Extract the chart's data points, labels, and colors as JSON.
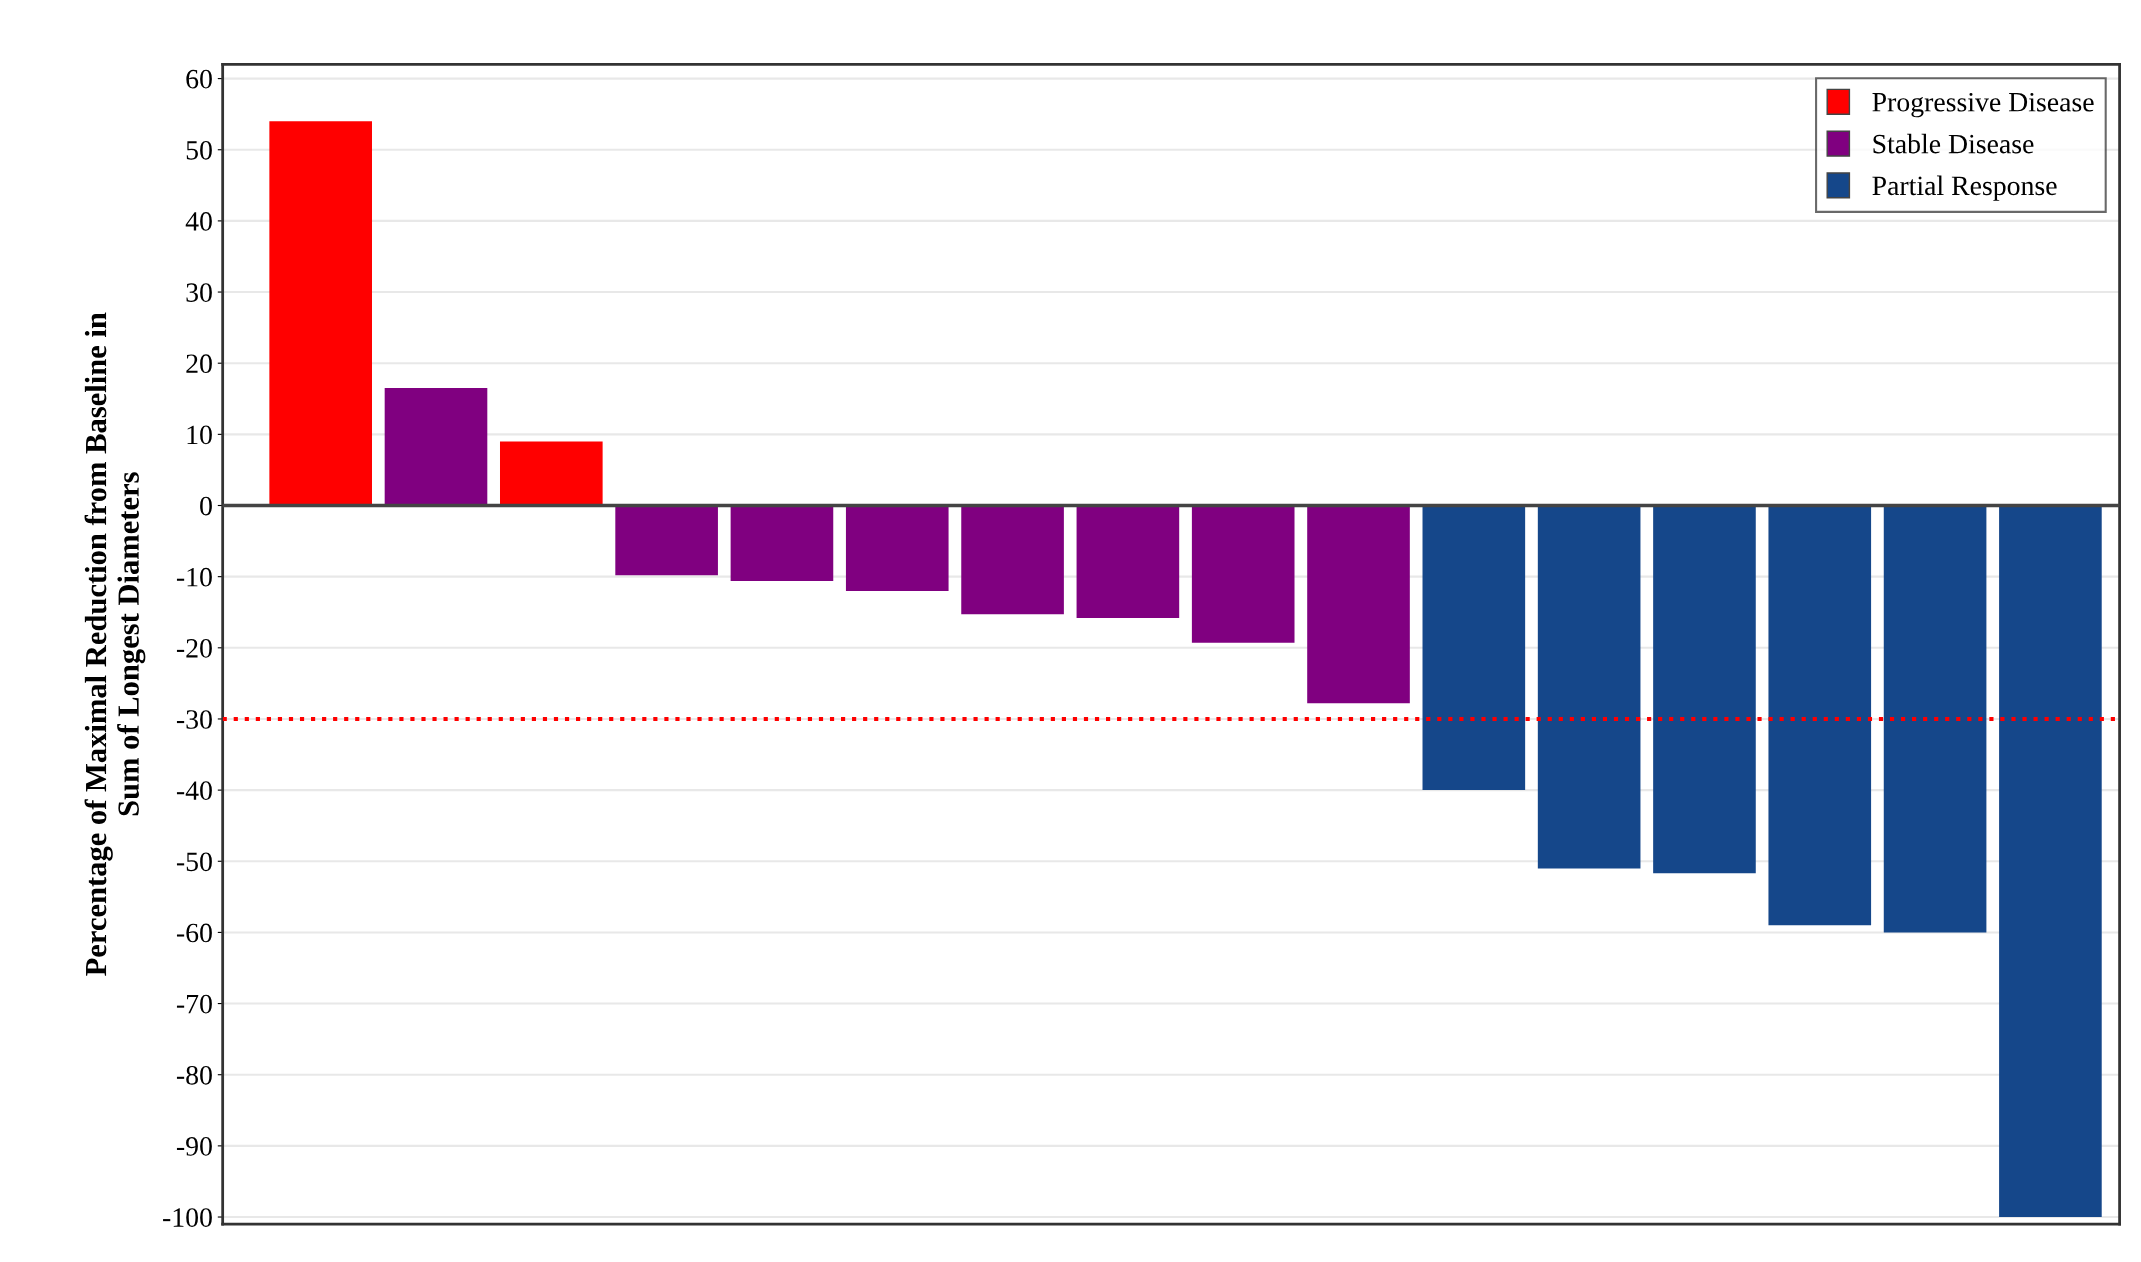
{
  "chart_data": {
    "type": "bar",
    "ylabel": "Percentage of Maximal Reduction from Baseline in\nSum of Longest Diameters",
    "categories": [
      null,
      null,
      null,
      null,
      null,
      null,
      null,
      null,
      null,
      null,
      null,
      null,
      null,
      null,
      null,
      null
    ],
    "series": [
      {
        "name": "Progressive Disease",
        "color": "#ff0000",
        "values": [
          54,
          null,
          9,
          null,
          null,
          null,
          null,
          null,
          null,
          null,
          null,
          null,
          null,
          null,
          null,
          null
        ]
      },
      {
        "name": "Stable Disease",
        "color": "#800080",
        "values": [
          null,
          16.5,
          null,
          -9.8,
          -10.6,
          -12,
          -15.3,
          -15.8,
          -19.3,
          -27.8,
          null,
          null,
          null,
          null,
          null,
          null
        ]
      },
      {
        "name": "Partial Response",
        "color": "#15478a",
        "values": [
          null,
          null,
          null,
          null,
          null,
          null,
          null,
          null,
          null,
          null,
          -40,
          -51,
          -51.7,
          -59,
          -60,
          -100
        ]
      }
    ],
    "ylim": [
      -101,
      62
    ],
    "yticks": [
      -100,
      -90,
      -80,
      -70,
      -60,
      -50,
      -40,
      -30,
      -20,
      -10,
      0,
      10,
      20,
      30,
      40,
      50,
      60
    ],
    "ref_lines": [
      {
        "axis": "y",
        "value": -30,
        "color": "#ff0000",
        "line_style": "dotted"
      },
      {
        "axis": "y",
        "value": 0,
        "color": "#444444",
        "line_style": "solid"
      }
    ],
    "grid": "y",
    "legend": "top right"
  }
}
